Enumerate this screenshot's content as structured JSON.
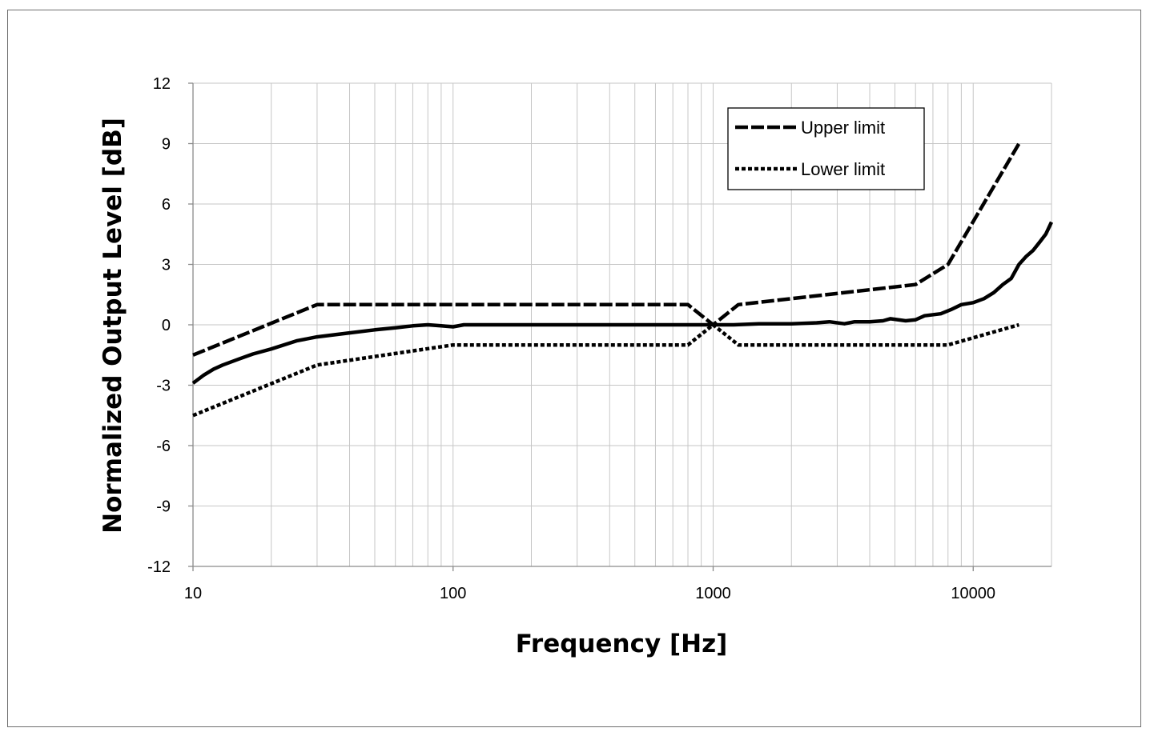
{
  "chart_data": {
    "type": "line",
    "xscale": "log",
    "xlim": [
      10,
      20000
    ],
    "ylim": [
      -12,
      12
    ],
    "grid": true,
    "legend_position": "top-right",
    "xlabel": "Frequency [Hz]",
    "ylabel": "Normalized Output Level [dB]",
    "x_ticks": [
      "10",
      "100",
      "1000",
      "10000"
    ],
    "y_ticks": [
      "12",
      "9",
      "6",
      "3",
      "0",
      "-3",
      "-6",
      "-9",
      "-12"
    ],
    "series": [
      {
        "name": "Upper limit",
        "style": "long-dash",
        "color": "#000000",
        "points": [
          [
            10,
            -1.5
          ],
          [
            30,
            1.0
          ],
          [
            800,
            1.0
          ],
          [
            1000,
            0.0
          ],
          [
            1250,
            1.0
          ],
          [
            6000,
            2.0
          ],
          [
            8000,
            3.0
          ],
          [
            15000,
            9.0
          ]
        ]
      },
      {
        "name": "Lower limit",
        "style": "short-dash",
        "color": "#000000",
        "points": [
          [
            10,
            -4.5
          ],
          [
            30,
            -2.0
          ],
          [
            100,
            -1.0
          ],
          [
            800,
            -1.0
          ],
          [
            1000,
            0.0
          ],
          [
            1250,
            -1.0
          ],
          [
            8000,
            -1.0
          ],
          [
            15000,
            0.0
          ]
        ]
      },
      {
        "style": "solid",
        "color": "#000000",
        "points": [
          [
            10,
            -2.9
          ],
          [
            11,
            -2.5
          ],
          [
            12,
            -2.2
          ],
          [
            13,
            -2.0
          ],
          [
            15,
            -1.7
          ],
          [
            17,
            -1.45
          ],
          [
            20,
            -1.2
          ],
          [
            25,
            -0.8
          ],
          [
            30,
            -0.6
          ],
          [
            40,
            -0.4
          ],
          [
            50,
            -0.25
          ],
          [
            60,
            -0.15
          ],
          [
            70,
            -0.05
          ],
          [
            80,
            0.0
          ],
          [
            90,
            -0.05
          ],
          [
            100,
            -0.1
          ],
          [
            110,
            0.0
          ],
          [
            150,
            0.0
          ],
          [
            200,
            0.0
          ],
          [
            300,
            0.0
          ],
          [
            500,
            0.0
          ],
          [
            700,
            0.0
          ],
          [
            900,
            0.0
          ],
          [
            1000,
            0.0
          ],
          [
            1200,
            0.0
          ],
          [
            1500,
            0.05
          ],
          [
            2000,
            0.05
          ],
          [
            2500,
            0.1
          ],
          [
            2800,
            0.15
          ],
          [
            3200,
            0.05
          ],
          [
            3500,
            0.15
          ],
          [
            4000,
            0.15
          ],
          [
            4500,
            0.2
          ],
          [
            4800,
            0.3
          ],
          [
            5500,
            0.2
          ],
          [
            6000,
            0.25
          ],
          [
            6500,
            0.45
          ],
          [
            7500,
            0.55
          ],
          [
            8200,
            0.75
          ],
          [
            9000,
            1.0
          ],
          [
            10000,
            1.1
          ],
          [
            11000,
            1.3
          ],
          [
            12000,
            1.6
          ],
          [
            13000,
            2.0
          ],
          [
            14000,
            2.3
          ],
          [
            15000,
            3.0
          ],
          [
            16000,
            3.4
          ],
          [
            17000,
            3.7
          ],
          [
            18000,
            4.1
          ],
          [
            19000,
            4.5
          ],
          [
            20000,
            5.1
          ]
        ]
      }
    ]
  }
}
